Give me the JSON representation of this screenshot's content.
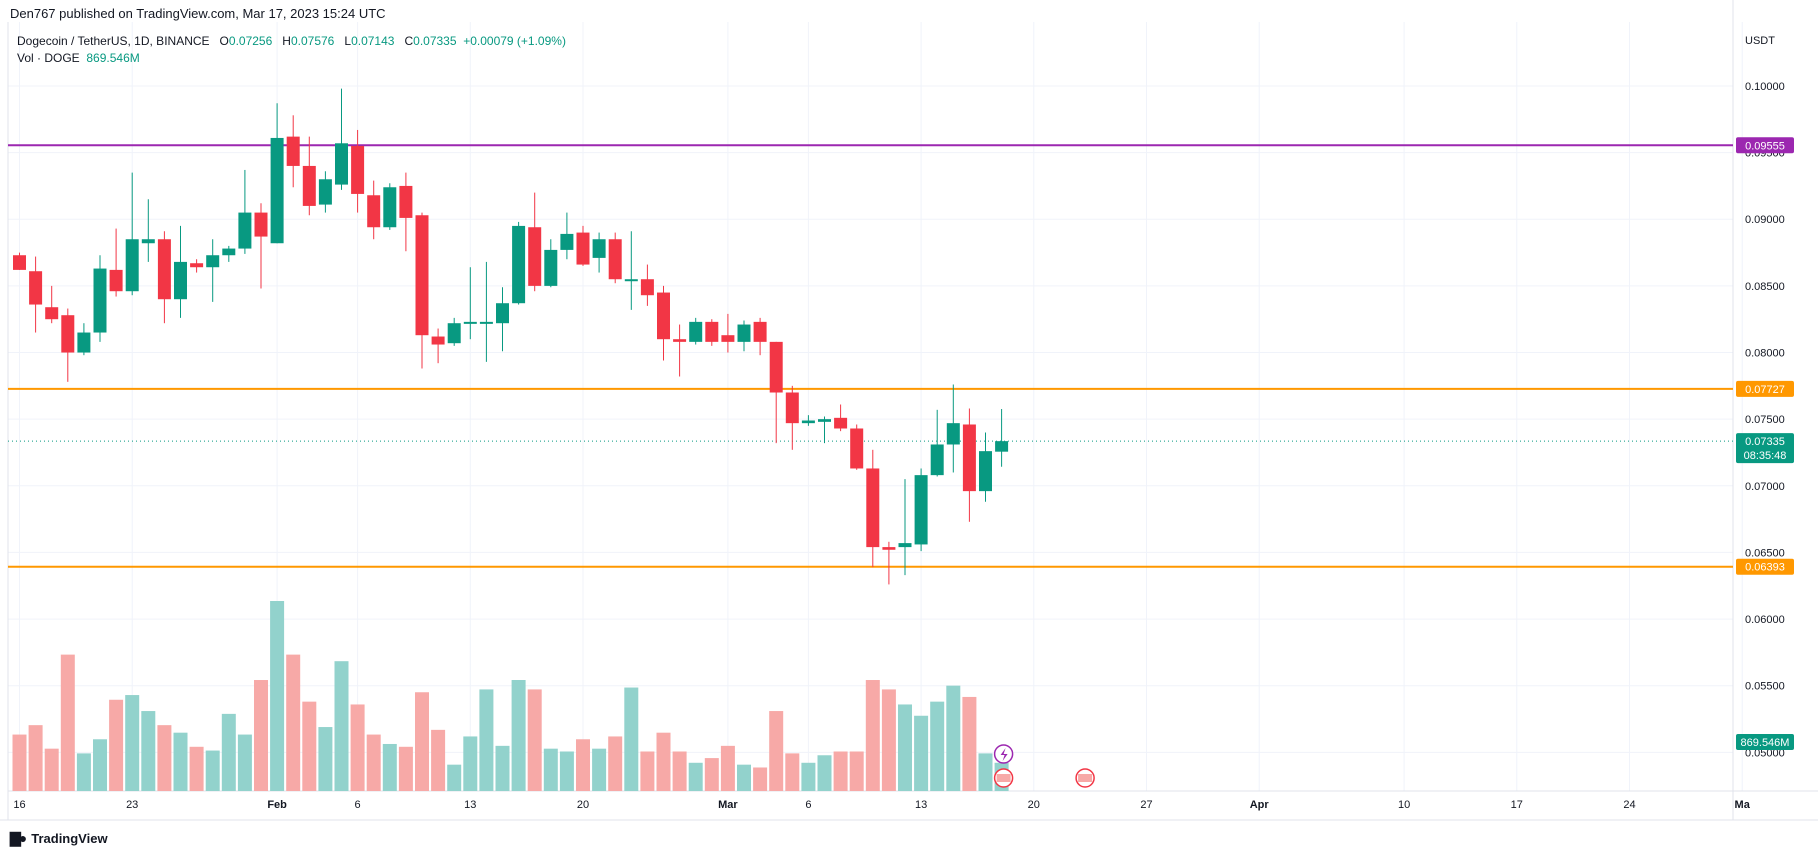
{
  "header": {
    "published_by": "Den767 published on TradingView.com, Mar 17, 2023 15:24 UTC"
  },
  "legend": {
    "symbol": "Dogecoin / TetherUS, 1D, BINANCE",
    "o_label": "O",
    "o_value": "0.07256",
    "h_label": "H",
    "h_value": "0.07576",
    "l_label": "L",
    "l_value": "0.07143",
    "c_label": "C",
    "c_value": "0.07335",
    "change": "+0.00079 (+1.09%)",
    "vol_label": "Vol · DOGE",
    "vol_value": "869.546M"
  },
  "footer": {
    "brand": "TradingView"
  },
  "colors": {
    "up": "#089981",
    "down": "#f23645",
    "vol_up": "#92d2cc",
    "vol_down": "#f7a9a7",
    "resistance_purple": "#9c27b0",
    "level_orange": "#ff9800",
    "grid": "#f0f3fa",
    "axis_text": "#131722"
  },
  "chart_data": {
    "type": "candlestick",
    "symbol": "DOGEUSDT",
    "interval": "1D",
    "currency_label": "USDT",
    "ylim": [
      0.0471,
      0.1048
    ],
    "yticks": [
      0.1,
      0.095,
      0.09,
      0.085,
      0.08,
      0.075,
      0.07,
      0.065,
      0.06,
      0.055,
      0.05
    ],
    "ytick_labels": [
      "0.10000",
      "0.09500",
      "0.09000",
      "0.08500",
      "0.08000",
      "0.07500",
      "0.07000",
      "0.06500",
      "0.06000",
      "0.05500",
      "0.05000"
    ],
    "xticks": [
      {
        "label": "16",
        "day": 0,
        "bold": false
      },
      {
        "label": "23",
        "day": 7,
        "bold": false
      },
      {
        "label": "Feb",
        "day": 16,
        "bold": true
      },
      {
        "label": "6",
        "day": 21,
        "bold": false
      },
      {
        "label": "13",
        "day": 28,
        "bold": false
      },
      {
        "label": "20",
        "day": 35,
        "bold": false
      },
      {
        "label": "Mar",
        "day": 44,
        "bold": true
      },
      {
        "label": "6",
        "day": 49,
        "bold": false
      },
      {
        "label": "13",
        "day": 56,
        "bold": false
      },
      {
        "label": "20",
        "day": 63,
        "bold": false
      },
      {
        "label": "27",
        "day": 70,
        "bold": false
      },
      {
        "label": "Apr",
        "day": 77,
        "bold": true
      },
      {
        "label": "10",
        "day": 86,
        "bold": false
      },
      {
        "label": "17",
        "day": 93,
        "bold": false
      },
      {
        "label": "24",
        "day": 100,
        "bold": false
      },
      {
        "label": "Ma",
        "day": 107,
        "bold": true
      }
    ],
    "candles": [
      {
        "o": 0.0873,
        "h": 0.0875,
        "l": 0.0862,
        "c": 0.0862,
        "v": 60
      },
      {
        "o": 0.0861,
        "h": 0.0872,
        "l": 0.0815,
        "c": 0.0836,
        "v": 70
      },
      {
        "o": 0.0834,
        "h": 0.085,
        "l": 0.0822,
        "c": 0.0825,
        "v": 45
      },
      {
        "o": 0.0828,
        "h": 0.0833,
        "l": 0.0778,
        "c": 0.08,
        "v": 145
      },
      {
        "o": 0.08,
        "h": 0.0822,
        "l": 0.0798,
        "c": 0.0815,
        "v": 40
      },
      {
        "o": 0.0815,
        "h": 0.0873,
        "l": 0.0808,
        "c": 0.0863,
        "v": 55
      },
      {
        "o": 0.0862,
        "h": 0.0893,
        "l": 0.0842,
        "c": 0.0846,
        "v": 97
      },
      {
        "o": 0.0846,
        "h": 0.0935,
        "l": 0.0843,
        "c": 0.0885,
        "v": 102
      },
      {
        "o": 0.0882,
        "h": 0.0915,
        "l": 0.0868,
        "c": 0.0885,
        "v": 85
      },
      {
        "o": 0.0885,
        "h": 0.0891,
        "l": 0.0822,
        "c": 0.084,
        "v": 70
      },
      {
        "o": 0.084,
        "h": 0.0895,
        "l": 0.0826,
        "c": 0.0868,
        "v": 62
      },
      {
        "o": 0.0867,
        "h": 0.087,
        "l": 0.086,
        "c": 0.0864,
        "v": 47
      },
      {
        "o": 0.0864,
        "h": 0.0885,
        "l": 0.0838,
        "c": 0.0873,
        "v": 43
      },
      {
        "o": 0.0873,
        "h": 0.088,
        "l": 0.0868,
        "c": 0.0878,
        "v": 82
      },
      {
        "o": 0.0878,
        "h": 0.0937,
        "l": 0.0874,
        "c": 0.0905,
        "v": 60
      },
      {
        "o": 0.0905,
        "h": 0.0912,
        "l": 0.0848,
        "c": 0.0887,
        "v": 118
      },
      {
        "o": 0.0882,
        "h": 0.0987,
        "l": 0.0882,
        "c": 0.0961,
        "v": 202
      },
      {
        "o": 0.0962,
        "h": 0.0978,
        "l": 0.0924,
        "c": 0.094,
        "v": 145
      },
      {
        "o": 0.094,
        "h": 0.0962,
        "l": 0.0903,
        "c": 0.091,
        "v": 95
      },
      {
        "o": 0.0911,
        "h": 0.0936,
        "l": 0.0905,
        "c": 0.093,
        "v": 68
      },
      {
        "o": 0.0926,
        "h": 0.0998,
        "l": 0.0922,
        "c": 0.0957,
        "v": 138
      },
      {
        "o": 0.0955,
        "h": 0.0967,
        "l": 0.0905,
        "c": 0.0919,
        "v": 92
      },
      {
        "o": 0.0918,
        "h": 0.0929,
        "l": 0.0885,
        "c": 0.0894,
        "v": 60
      },
      {
        "o": 0.0894,
        "h": 0.0927,
        "l": 0.0892,
        "c": 0.0924,
        "v": 50
      },
      {
        "o": 0.0925,
        "h": 0.0935,
        "l": 0.0876,
        "c": 0.0901,
        "v": 47
      },
      {
        "o": 0.0903,
        "h": 0.0905,
        "l": 0.0788,
        "c": 0.0813,
        "v": 105
      },
      {
        "o": 0.0812,
        "h": 0.0818,
        "l": 0.0792,
        "c": 0.0806,
        "v": 65
      },
      {
        "o": 0.0807,
        "h": 0.0826,
        "l": 0.0805,
        "c": 0.0822,
        "v": 28
      },
      {
        "o": 0.0822,
        "h": 0.0864,
        "l": 0.081,
        "c": 0.0823,
        "v": 58
      },
      {
        "o": 0.0823,
        "h": 0.0868,
        "l": 0.0793,
        "c": 0.0823,
        "v": 108
      },
      {
        "o": 0.0822,
        "h": 0.0849,
        "l": 0.0801,
        "c": 0.0837,
        "v": 48
      },
      {
        "o": 0.0837,
        "h": 0.0898,
        "l": 0.0836,
        "c": 0.0895,
        "v": 118
      },
      {
        "o": 0.0894,
        "h": 0.092,
        "l": 0.0846,
        "c": 0.085,
        "v": 108
      },
      {
        "o": 0.085,
        "h": 0.0885,
        "l": 0.0849,
        "c": 0.0877,
        "v": 45
      },
      {
        "o": 0.0877,
        "h": 0.0905,
        "l": 0.087,
        "c": 0.0889,
        "v": 42
      },
      {
        "o": 0.089,
        "h": 0.0895,
        "l": 0.0865,
        "c": 0.0866,
        "v": 55
      },
      {
        "o": 0.0871,
        "h": 0.089,
        "l": 0.086,
        "c": 0.0885,
        "v": 45
      },
      {
        "o": 0.0885,
        "h": 0.089,
        "l": 0.0852,
        "c": 0.0855,
        "v": 58
      },
      {
        "o": 0.0855,
        "h": 0.0891,
        "l": 0.0832,
        "c": 0.0855,
        "v": 110
      },
      {
        "o": 0.0855,
        "h": 0.0866,
        "l": 0.0835,
        "c": 0.0843,
        "v": 42
      },
      {
        "o": 0.0845,
        "h": 0.085,
        "l": 0.0794,
        "c": 0.081,
        "v": 62
      },
      {
        "o": 0.081,
        "h": 0.0821,
        "l": 0.0782,
        "c": 0.0808,
        "v": 42
      },
      {
        "o": 0.0808,
        "h": 0.0826,
        "l": 0.0806,
        "c": 0.0823,
        "v": 30
      },
      {
        "o": 0.0823,
        "h": 0.0825,
        "l": 0.0805,
        "c": 0.0808,
        "v": 35
      },
      {
        "o": 0.0813,
        "h": 0.0829,
        "l": 0.08,
        "c": 0.0808,
        "v": 48
      },
      {
        "o": 0.0808,
        "h": 0.0824,
        "l": 0.0801,
        "c": 0.0821,
        "v": 28
      },
      {
        "o": 0.0823,
        "h": 0.0826,
        "l": 0.0798,
        "c": 0.0808,
        "v": 25
      },
      {
        "o": 0.0808,
        "h": 0.0808,
        "l": 0.0732,
        "c": 0.077,
        "v": 85
      },
      {
        "o": 0.077,
        "h": 0.0775,
        "l": 0.0727,
        "c": 0.0747,
        "v": 40
      },
      {
        "o": 0.0747,
        "h": 0.0753,
        "l": 0.0745,
        "c": 0.0749,
        "v": 30
      },
      {
        "o": 0.0748,
        "h": 0.0752,
        "l": 0.0732,
        "c": 0.075,
        "v": 38
      },
      {
        "o": 0.0751,
        "h": 0.0761,
        "l": 0.0741,
        "c": 0.0743,
        "v": 42
      },
      {
        "o": 0.0743,
        "h": 0.0746,
        "l": 0.0712,
        "c": 0.0713,
        "v": 42
      },
      {
        "o": 0.0713,
        "h": 0.0727,
        "l": 0.0639,
        "c": 0.0654,
        "v": 118
      },
      {
        "o": 0.0654,
        "h": 0.0658,
        "l": 0.0626,
        "c": 0.0652,
        "v": 108
      },
      {
        "o": 0.0654,
        "h": 0.0705,
        "l": 0.0633,
        "c": 0.0657,
        "v": 92
      },
      {
        "o": 0.0656,
        "h": 0.0713,
        "l": 0.0651,
        "c": 0.0708,
        "v": 80
      },
      {
        "o": 0.0708,
        "h": 0.0757,
        "l": 0.0707,
        "c": 0.0731,
        "v": 95
      },
      {
        "o": 0.0731,
        "h": 0.0776,
        "l": 0.071,
        "c": 0.0747,
        "v": 112
      },
      {
        "o": 0.0746,
        "h": 0.0758,
        "l": 0.0673,
        "c": 0.0696,
        "v": 100
      },
      {
        "o": 0.0696,
        "h": 0.074,
        "l": 0.0688,
        "c": 0.0726,
        "v": 40
      },
      {
        "o": 0.07256,
        "h": 0.07576,
        "l": 0.07143,
        "c": 0.07335,
        "v": 30
      }
    ],
    "levels": [
      {
        "name": "resistance-0.09555",
        "price": 0.09555,
        "label": "0.09555",
        "color": "#9c27b0"
      },
      {
        "name": "level-0.07727",
        "price": 0.07727,
        "label": "0.07727",
        "color": "#ff9800"
      },
      {
        "name": "level-0.06393",
        "price": 0.06393,
        "label": "0.06393",
        "color": "#ff9800"
      }
    ],
    "last_price": {
      "price": 0.07335,
      "label": "0.07335",
      "countdown": "08:35:48"
    },
    "volume_label": "869.546M"
  }
}
